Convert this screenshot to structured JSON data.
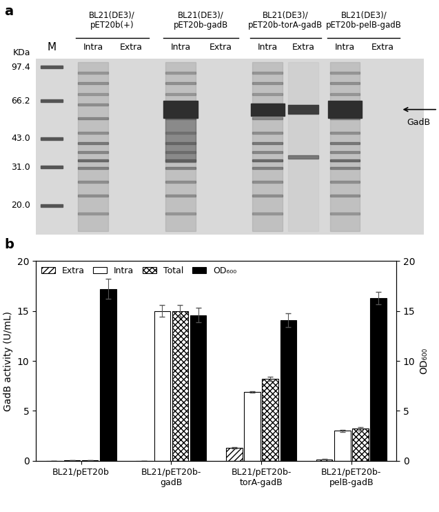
{
  "panel_labels": [
    "a",
    "b"
  ],
  "gel": {
    "unit": "KDa",
    "marker_lane": "M",
    "markers": [
      {
        "value": 97.4,
        "label": "97.4"
      },
      {
        "value": 66.2,
        "label": "66.2"
      },
      {
        "value": 43.0,
        "label": "43.0"
      },
      {
        "value": 31.0,
        "label": "31.0"
      },
      {
        "value": 20.0,
        "label": "20.0"
      }
    ],
    "strains": [
      "BL21(DE3)/\npET20b(+)",
      "BL21(DE3)/\npET20b-gadB",
      "BL21(DE3)/\npET20b-torA-gadB",
      "BL21(DE3)/\npET20b-pelB-gadB"
    ],
    "fractions": [
      "Intra",
      "Extra"
    ],
    "band_label": "GadB"
  },
  "chart_data": {
    "type": "bar",
    "categories": [
      "BL21/pET20b",
      "BL21/pET20b-\ngadB",
      "BL21/pET20b-\ntorA-gadB",
      "BL21/pET20b-\npelB-gadB"
    ],
    "y_label": "GadB activity (U/mL)",
    "y2_label": "OD₆₀₀",
    "ylim": [
      0,
      20
    ],
    "yticks": [
      0,
      5,
      10,
      15,
      20
    ],
    "y2lim": [
      0,
      20
    ],
    "y2ticks": [
      0,
      5,
      10,
      15,
      20
    ],
    "grid": false,
    "legend": "upper left",
    "series": [
      {
        "name": "Extra",
        "color": "#ffffff",
        "values": [
          0,
          0,
          1.3,
          0.15
        ],
        "errors": [
          0,
          0,
          0.05,
          0.04
        ]
      },
      {
        "name": "Intra",
        "color": "#ffffff",
        "values": [
          0.05,
          15.0,
          6.9,
          3.0
        ],
        "errors": [
          0,
          0.6,
          0.1,
          0.12
        ]
      },
      {
        "name": "Total",
        "color": "#ffffff",
        "values": [
          0.05,
          15.0,
          8.2,
          3.2
        ],
        "errors": [
          0,
          0.6,
          0.2,
          0.15
        ]
      },
      {
        "name": "OD₆₀₀",
        "color": "#000000",
        "axis": "y2",
        "values": [
          17.2,
          14.6,
          14.1,
          16.3
        ],
        "errors": [
          1.0,
          0.7,
          0.7,
          0.6
        ]
      }
    ]
  }
}
